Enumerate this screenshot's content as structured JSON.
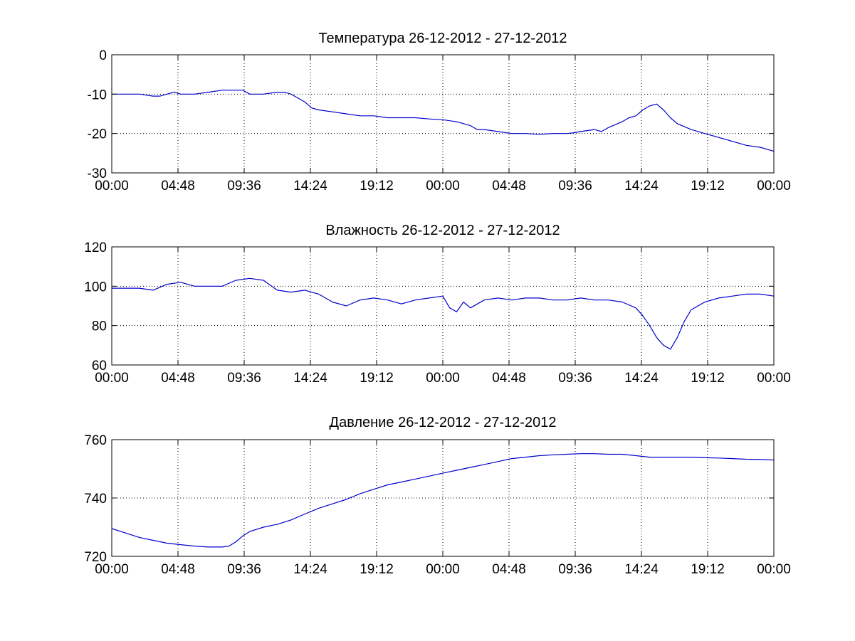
{
  "figure": {
    "background": "#ffffff",
    "line_color": "#0000cc",
    "axis_color": "#000000",
    "grid_color": "#000000"
  },
  "chart_data": [
    {
      "type": "line",
      "title": "Температура 26-12-2012 - 27-12-2012",
      "xlabel": "",
      "ylabel": "",
      "xlim": [
        0,
        48
      ],
      "ylim": [
        -30,
        0
      ],
      "x_ticks": [
        0,
        4.8,
        9.6,
        14.4,
        19.2,
        24,
        28.8,
        33.6,
        38.4,
        43.2,
        48
      ],
      "x_tick_labels": [
        "00:00",
        "04:48",
        "09:36",
        "14:24",
        "19:12",
        "00:00",
        "04:48",
        "09:36",
        "14:24",
        "19:12",
        "00:00"
      ],
      "y_ticks": [
        -30,
        -20,
        -10,
        0
      ],
      "y_tick_labels": [
        "-30",
        "-20",
        "-10",
        "0"
      ],
      "grid": true,
      "series": [
        {
          "x": [
            0,
            1,
            2,
            3,
            3.5,
            4,
            4.5,
            5,
            6,
            7,
            8,
            9,
            9.5,
            10,
            11,
            12,
            12.5,
            13,
            13.5,
            14,
            14.5,
            15,
            16,
            17,
            18,
            19,
            20,
            21,
            22,
            23,
            24,
            25,
            26,
            26.5,
            27,
            28,
            29,
            30,
            31,
            32,
            33,
            33.5,
            34,
            35,
            35.5,
            36,
            37,
            37.5,
            38,
            38.5,
            39,
            39.5,
            40,
            40.5,
            41,
            42,
            43,
            44,
            45,
            46,
            47,
            48
          ],
          "y": [
            -10,
            -10,
            -10,
            -10.5,
            -10.5,
            -10,
            -9.5,
            -10,
            -10,
            -9.5,
            -9,
            -9,
            -9,
            -10,
            -10,
            -9.5,
            -9.5,
            -10,
            -11,
            -12,
            -13.5,
            -14,
            -14.5,
            -15,
            -15.5,
            -15.5,
            -16,
            -16,
            -16,
            -16.3,
            -16.5,
            -17,
            -18,
            -19,
            -19,
            -19.5,
            -20,
            -20,
            -20.2,
            -20,
            -20,
            -19.8,
            -19.5,
            -19,
            -19.5,
            -18.5,
            -17,
            -16,
            -15.5,
            -14,
            -13,
            -12.5,
            -14,
            -16,
            -17.5,
            -19,
            -20,
            -21,
            -22,
            -23,
            -23.5,
            -24.5
          ]
        }
      ]
    },
    {
      "type": "line",
      "title": "Влажность 26-12-2012 - 27-12-2012",
      "xlabel": "",
      "ylabel": "",
      "xlim": [
        0,
        48
      ],
      "ylim": [
        60,
        120
      ],
      "x_ticks": [
        0,
        4.8,
        9.6,
        14.4,
        19.2,
        24,
        28.8,
        33.6,
        38.4,
        43.2,
        48
      ],
      "x_tick_labels": [
        "00:00",
        "04:48",
        "09:36",
        "14:24",
        "19:12",
        "00:00",
        "04:48",
        "09:36",
        "14:24",
        "19:12",
        "00:00"
      ],
      "y_ticks": [
        60,
        80,
        100,
        120
      ],
      "y_tick_labels": [
        "60",
        "80",
        "100",
        "120"
      ],
      "grid": true,
      "series": [
        {
          "x": [
            0,
            1,
            2,
            3,
            4,
            5,
            6,
            7,
            8,
            9,
            10,
            11,
            12,
            13,
            14,
            15,
            16,
            17,
            18,
            19,
            20,
            21,
            22,
            23,
            24,
            24.5,
            25,
            25.5,
            26,
            27,
            28,
            29,
            30,
            31,
            32,
            33,
            34,
            35,
            36,
            37,
            38,
            38.5,
            39,
            39.5,
            40,
            40.5,
            41,
            41.5,
            42,
            43,
            44,
            45,
            46,
            47,
            48
          ],
          "y": [
            99,
            99,
            99,
            98,
            101,
            102,
            100,
            100,
            100,
            103,
            104,
            103,
            98,
            97,
            98,
            96,
            92,
            90,
            93,
            94,
            93,
            91,
            93,
            94,
            95,
            89,
            87,
            92,
            89,
            93,
            94,
            93,
            94,
            94,
            93,
            93,
            94,
            93,
            93,
            92,
            89,
            85,
            80,
            74,
            70,
            68,
            74,
            82,
            88,
            92,
            94,
            95,
            96,
            96,
            95
          ]
        }
      ]
    },
    {
      "type": "line",
      "title": "Давление 26-12-2012 - 27-12-2012",
      "xlabel": "",
      "ylabel": "",
      "xlim": [
        0,
        48
      ],
      "ylim": [
        720,
        760
      ],
      "x_ticks": [
        0,
        4.8,
        9.6,
        14.4,
        19.2,
        24,
        28.8,
        33.6,
        38.4,
        43.2,
        48
      ],
      "x_tick_labels": [
        "00:00",
        "04:48",
        "09:36",
        "14:24",
        "19:12",
        "00:00",
        "04:48",
        "09:36",
        "14:24",
        "19:12",
        "00:00"
      ],
      "y_ticks": [
        720,
        740,
        760
      ],
      "y_tick_labels": [
        "720",
        "740",
        "760"
      ],
      "grid": true,
      "series": [
        {
          "x": [
            0,
            1,
            2,
            3,
            4,
            5,
            6,
            7,
            8,
            8.5,
            9,
            9.5,
            10,
            11,
            12,
            13,
            14,
            15,
            16,
            17,
            18,
            19,
            20,
            21,
            22,
            23,
            24,
            25,
            26,
            27,
            28,
            29,
            30,
            31,
            32,
            33,
            34,
            35,
            36,
            37,
            38,
            39,
            40,
            41,
            42,
            43,
            44,
            45,
            46,
            47,
            48
          ],
          "y": [
            729.5,
            728,
            726.5,
            725.5,
            724.5,
            724,
            723.5,
            723.2,
            723.2,
            723.5,
            725,
            727,
            728.5,
            730,
            731,
            732.5,
            734.5,
            736.5,
            738,
            739.5,
            741.5,
            743,
            744.5,
            745.5,
            746.5,
            747.5,
            748.5,
            749.5,
            750.5,
            751.5,
            752.5,
            753.5,
            754,
            754.5,
            754.8,
            755,
            755.2,
            755.2,
            755,
            755,
            754.5,
            754,
            754,
            754,
            754,
            753.8,
            753.7,
            753.5,
            753.3,
            753.2,
            753
          ]
        }
      ]
    }
  ]
}
